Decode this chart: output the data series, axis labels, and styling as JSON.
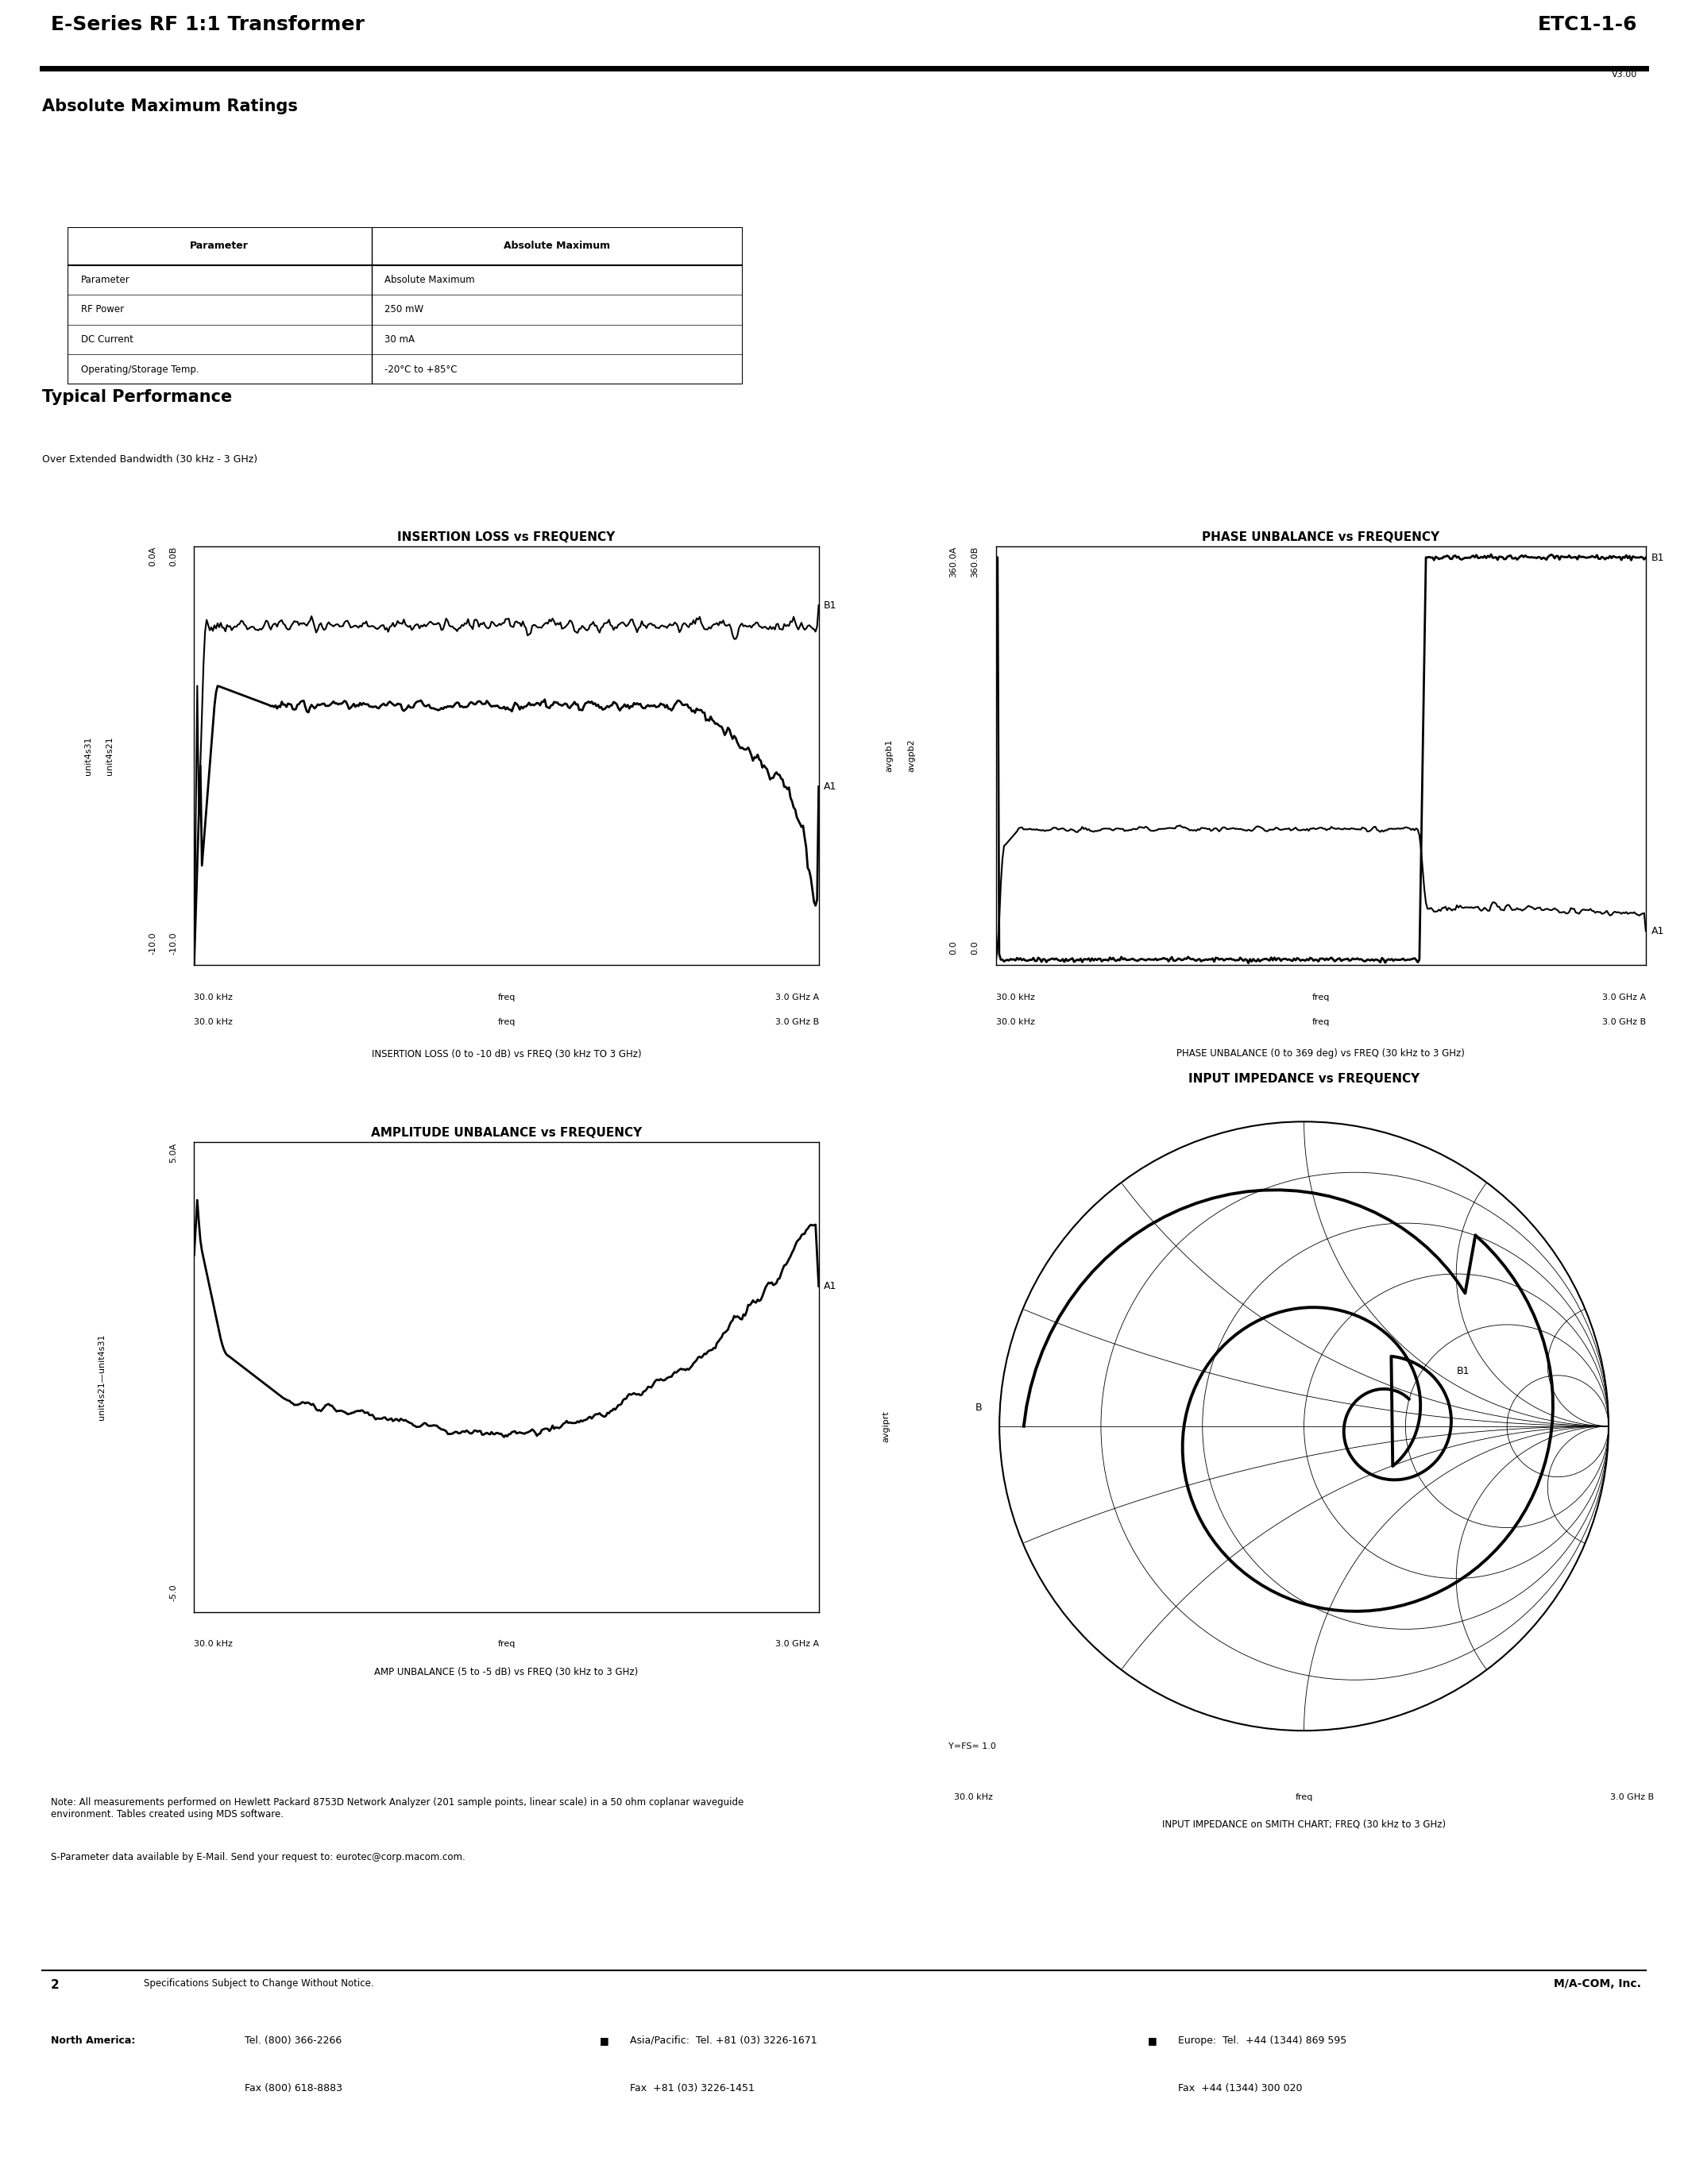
{
  "title_left": "E-Series RF 1:1 Transformer",
  "title_right": "ETC1-1-6",
  "version": "V3.00",
  "section1_title": "Absolute Maximum Ratings",
  "table_headers": [
    "Parameter",
    "Absolute Maximum"
  ],
  "table_rows": [
    [
      "Parameter",
      "Absolute Maximum"
    ],
    [
      "RF Power",
      "250 mW"
    ],
    [
      "DC Current",
      "30 mA"
    ],
    [
      "Operating/Storage Temp.",
      "-20°C to +85°C"
    ]
  ],
  "section2_title": "Typical Performance",
  "section2_subtitle": "Over Extended Bandwidth (30 kHz - 3 GHz)",
  "plot1_title": "INSERTION LOSS vs FREQUENCY",
  "plot1_ylabel1": "unit4s21",
  "plot1_ylabel2": "unit4s31",
  "plot1_caption": "INSERTION LOSS (0 to -10 dB) vs FREQ (30 kHz TO 3 GHz)",
  "plot2_title": "PHASE UNBALANCE vs FREQUENCY",
  "plot2_ylabel1": "avgpb2",
  "plot2_ylabel2": "avgpb1",
  "plot2_caption": "PHASE UNBALANCE (0 to 369 deg) vs FREQ (30 kHz to 3 GHz)",
  "plot3_title": "AMPLITUDE UNBALANCE vs FREQUENCY",
  "plot3_ylabel": "unit4s21—unit4s31",
  "plot3_caption": "AMP UNBALANCE (5 to -5 dB) vs FREQ (30 kHz to 3 GHz)",
  "plot4_title": "INPUT IMPEDANCE vs FREQUENCY",
  "plot4_ylabel": "avgiprt",
  "plot4_caption": "INPUT IMPEDANCE on SMITH CHART; FREQ (30 kHz to 3 GHz)",
  "note": "Note: All measurements performed on Hewlett Packard 8753D Network Analyzer (201 sample points, linear scale) in a 50 ohm coplanar waveguide\nenvironment. Tables created using MDS software.",
  "sparameter_note": "S-Parameter data available by E-Mail. Send your request to: eurotec@corp.macom.com.",
  "page_number": "2",
  "page_note": "Specifications Subject to Change Without Notice.",
  "company": "M/A-COM, Inc.",
  "bg_color": "#ffffff",
  "text_color": "#000000",
  "grid_color": "#999999",
  "line_color": "#000000"
}
